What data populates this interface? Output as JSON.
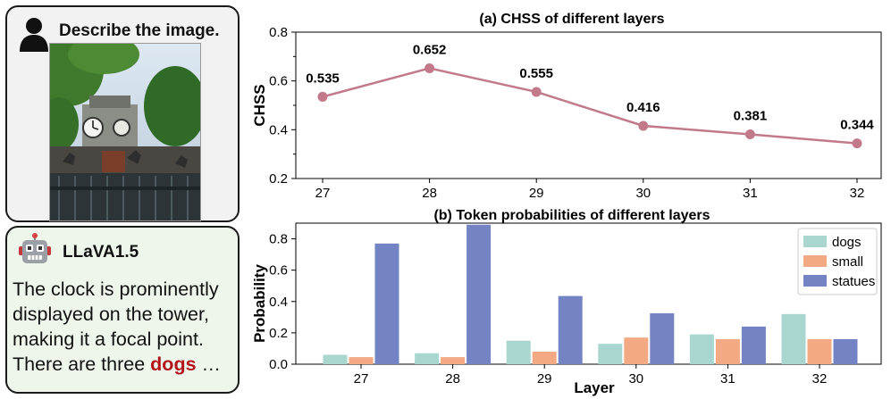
{
  "user": {
    "prompt": "Describe the image."
  },
  "assistant": {
    "model_name": "LLaVA1.5",
    "response_lines": [
      "The clock is prominently",
      "displayed on the tower,",
      "making it a focal point."
    ],
    "response_last_prefix": "There are three ",
    "response_highlight": "dogs",
    "response_suffix": " …"
  },
  "colors": {
    "line": "#c27a8a",
    "dogs": "#a9d6cf",
    "small": "#f3a983",
    "statues": "#7483c3",
    "highlight": "#b3141b"
  },
  "chart_data": [
    {
      "type": "line",
      "title": "(a) CHSS of different layers",
      "xlabel": "",
      "ylabel": "CHSS",
      "x": [
        27,
        28,
        29,
        30,
        31,
        32
      ],
      "y": [
        0.535,
        0.652,
        0.555,
        0.416,
        0.381,
        0.344
      ],
      "labels": [
        "0.535",
        "0.652",
        "0.555",
        "0.416",
        "0.381",
        "0.344"
      ],
      "ylim": [
        0.2,
        0.8
      ],
      "yticks": [
        "0.2",
        "0.4",
        "0.6",
        "0.8"
      ],
      "xticks": [
        "27",
        "28",
        "29",
        "30",
        "31",
        "32"
      ]
    },
    {
      "type": "bar",
      "title": "(b) Token probabilities of different layers",
      "xlabel": "Layer",
      "ylabel": "Probability",
      "categories": [
        "27",
        "28",
        "29",
        "30",
        "31",
        "32"
      ],
      "series": [
        {
          "name": "dogs",
          "values": [
            0.06,
            0.07,
            0.15,
            0.13,
            0.19,
            0.32
          ]
        },
        {
          "name": "small",
          "values": [
            0.045,
            0.045,
            0.08,
            0.17,
            0.16,
            0.16
          ]
        },
        {
          "name": "statues",
          "values": [
            0.77,
            0.89,
            0.435,
            0.325,
            0.24,
            0.16
          ]
        }
      ],
      "ylim": [
        0,
        0.9
      ],
      "yticks": [
        "0.0",
        "0.2",
        "0.4",
        "0.6",
        "0.8"
      ],
      "legend": "top-right"
    }
  ]
}
